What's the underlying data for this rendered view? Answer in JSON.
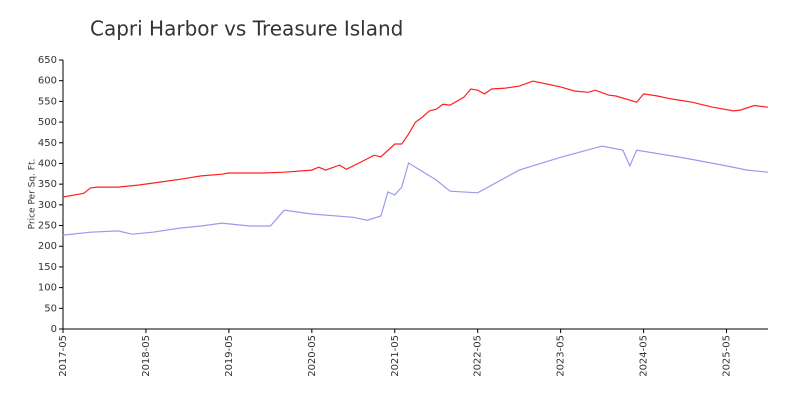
{
  "chart_data": {
    "type": "line",
    "title": "Capri Harbor vs Treasure Island",
    "y_label": "Price Per Sq. Ft.",
    "xlim": [
      "2017-05",
      "2025-11"
    ],
    "xticks": [
      "2017-05",
      "2018-05",
      "2019-05",
      "2020-05",
      "2021-05",
      "2022-05",
      "2023-05",
      "2024-05",
      "2025-05"
    ],
    "ylim": [
      0,
      650
    ],
    "yticks": [
      0,
      50,
      100,
      150,
      200,
      250,
      300,
      350,
      400,
      450,
      500,
      550,
      600,
      650
    ],
    "grid": false,
    "series": [
      {
        "color": "#ff2020",
        "x": [
          "2017-05",
          "2017-08",
          "2017-09",
          "2017-10",
          "2018-01",
          "2018-04",
          "2018-07",
          "2018-10",
          "2019-01",
          "2019-04",
          "2019-05",
          "2019-10",
          "2020-01",
          "2020-05",
          "2020-06",
          "2020-07",
          "2020-09",
          "2020-10",
          "2021-01",
          "2021-02",
          "2021-03",
          "2021-05",
          "2021-06",
          "2021-07",
          "2021-08",
          "2021-09",
          "2021-10",
          "2021-11",
          "2021-12",
          "2022-01",
          "2022-03",
          "2022-04",
          "2022-05",
          "2022-06",
          "2022-07",
          "2022-09",
          "2022-11",
          "2023-01",
          "2023-03",
          "2023-05",
          "2023-07",
          "2023-09",
          "2023-10",
          "2023-12",
          "2024-01",
          "2024-04",
          "2024-05",
          "2024-07",
          "2024-09",
          "2024-12",
          "2025-03",
          "2025-06",
          "2025-07",
          "2025-09",
          "2025-11"
        ],
        "values": [
          319,
          328,
          341,
          343,
          343,
          348,
          355,
          362,
          370,
          374,
          377,
          377,
          379,
          384,
          391,
          384,
          396,
          386,
          411,
          420,
          416,
          447,
          447,
          471,
          500,
          512,
          527,
          531,
          543,
          541,
          560,
          580,
          577,
          568,
          580,
          582,
          587,
          599,
          592,
          585,
          575,
          572,
          577,
          565,
          563,
          548,
          568,
          563,
          556,
          548,
          536,
          527,
          529,
          540,
          536
        ]
      },
      {
        "color": "#9a9aee",
        "x": [
          "2017-05",
          "2017-09",
          "2018-01",
          "2018-03",
          "2018-06",
          "2018-10",
          "2019-01",
          "2019-04",
          "2019-05",
          "2019-08",
          "2019-11",
          "2020-01",
          "2020-05",
          "2020-11",
          "2021-01",
          "2021-03",
          "2021-04",
          "2021-05",
          "2021-06",
          "2021-07",
          "2021-11",
          "2022-01",
          "2022-05",
          "2022-11",
          "2023-05",
          "2023-11",
          "2024-02",
          "2024-03",
          "2024-04",
          "2024-11",
          "2025-05",
          "2025-08",
          "2025-11"
        ],
        "values": [
          227,
          234,
          237,
          229,
          234,
          244,
          249,
          256,
          254,
          249,
          249,
          287,
          278,
          270,
          263,
          273,
          331,
          324,
          343,
          401,
          360,
          333,
          329,
          384,
          415,
          442,
          432,
          394,
          432,
          413,
          394,
          384,
          379
        ]
      }
    ]
  }
}
